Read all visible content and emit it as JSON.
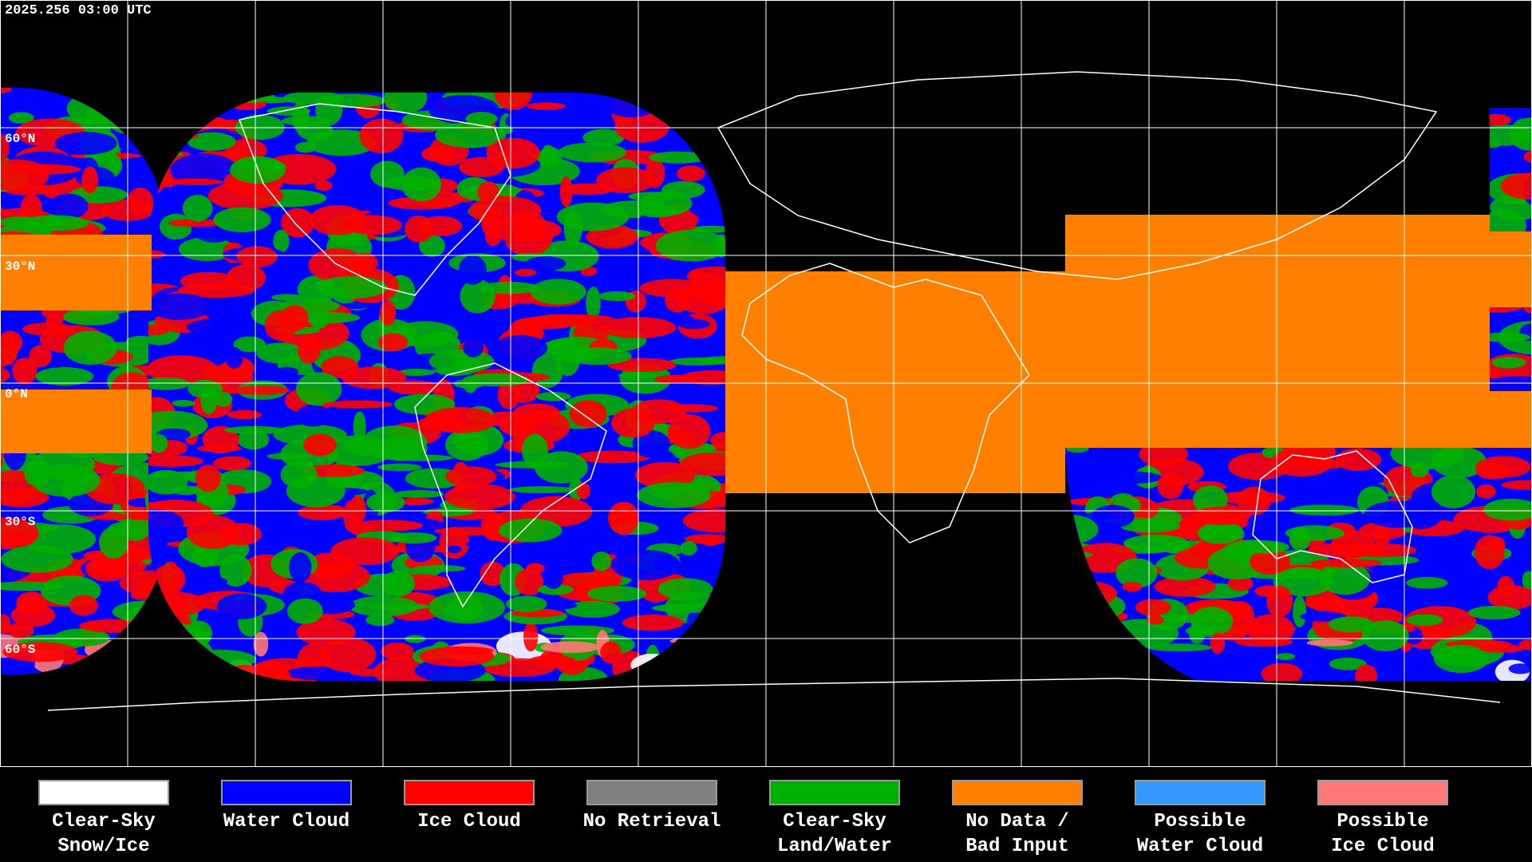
{
  "timestamp": "2025.256 03:00 UTC",
  "latitude_labels": [
    "60°N",
    "30°N",
    "0°N",
    "30°S",
    "60°S"
  ],
  "legend": [
    {
      "label_lines": [
        "Clear-Sky",
        "Snow/Ice"
      ],
      "color": "#ffffff"
    },
    {
      "label_lines": [
        "Water Cloud"
      ],
      "color": "#0000ff"
    },
    {
      "label_lines": [
        "Ice Cloud"
      ],
      "color": "#ff0000"
    },
    {
      "label_lines": [
        "No Retrieval"
      ],
      "color": "#808080"
    },
    {
      "label_lines": [
        "Clear-Sky",
        "Land/Water"
      ],
      "color": "#00b000"
    },
    {
      "label_lines": [
        "No Data /",
        "Bad Input"
      ],
      "color": "#ff8000"
    },
    {
      "label_lines": [
        "Possible",
        "Water Cloud"
      ],
      "color": "#3399ff"
    },
    {
      "label_lines": [
        "Possible",
        "Ice Cloud"
      ],
      "color": "#ff7777"
    }
  ]
}
